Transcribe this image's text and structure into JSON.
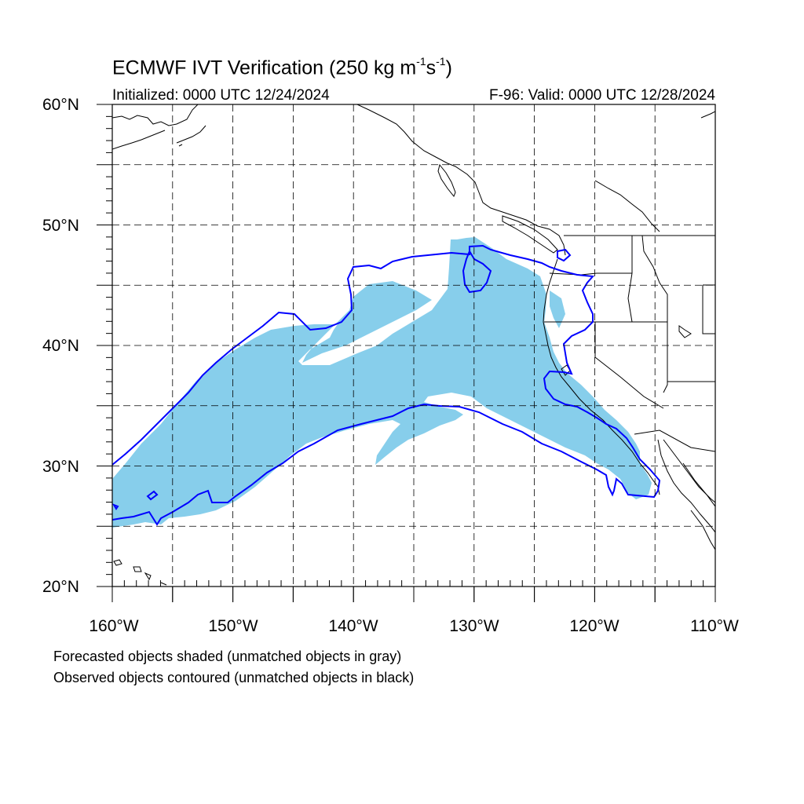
{
  "title": {
    "prefix": "ECMWF IVT Verification (250 kg m",
    "sup1": "-1",
    "mid": "s",
    "sup2": "-1",
    "suffix": ")"
  },
  "initialized": "Initialized: 0000 UTC 12/24/2024",
  "valid": "F-96: Valid: 0000 UTC 12/28/2024",
  "map": {
    "lon_range": [
      -160,
      -110
    ],
    "lat_range": [
      20,
      60
    ],
    "grid": "dashed every 5 degrees",
    "lat_labels": [
      "60°N",
      "50°N",
      "40°N",
      "30°N",
      "20°N"
    ],
    "lon_labels": [
      "160°W",
      "150°W",
      "140°W",
      "130°W",
      "120°W",
      "110°W"
    ],
    "forecast_fill_color": "#87ceeb",
    "observed_contour_color": "#0000ff",
    "coastline_color": "#000000"
  },
  "notes": {
    "line1": "Forecasted objects shaded (unmatched objects in gray)",
    "line2": "Observed objects contoured (unmatched objects in black)"
  }
}
